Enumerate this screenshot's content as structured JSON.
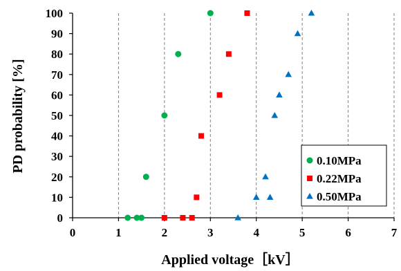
{
  "chart_data": {
    "type": "scatter",
    "xlabel": "Applied voltage［kV］",
    "ylabel": "PD probability [%]",
    "xlim": [
      0,
      7
    ],
    "ylim": [
      0,
      100
    ],
    "xticks": [
      "0",
      "1",
      "2",
      "3",
      "4",
      "5",
      "6",
      "7"
    ],
    "yticks": [
      "0",
      "10",
      "20",
      "30",
      "40",
      "50",
      "60",
      "70",
      "80",
      "90",
      "100"
    ],
    "grid": "vertical dashed",
    "legend_position": "bottom-right",
    "series": [
      {
        "name": "0.10MPa",
        "marker": "circle",
        "color": "#00b050",
        "points": [
          [
            1.2,
            0
          ],
          [
            1.4,
            0
          ],
          [
            1.5,
            0
          ],
          [
            1.6,
            20
          ],
          [
            2.0,
            50
          ],
          [
            2.3,
            80
          ],
          [
            3.0,
            100
          ]
        ]
      },
      {
        "name": "0.22MPa",
        "marker": "square",
        "color": "#ff0000",
        "points": [
          [
            2.0,
            0
          ],
          [
            2.4,
            0
          ],
          [
            2.6,
            0
          ],
          [
            2.7,
            10
          ],
          [
            2.8,
            40
          ],
          [
            3.2,
            60
          ],
          [
            3.4,
            80
          ],
          [
            3.8,
            100
          ]
        ]
      },
      {
        "name": "0.50MPa",
        "marker": "triangle",
        "color": "#0070c0",
        "points": [
          [
            3.6,
            0
          ],
          [
            4.0,
            10
          ],
          [
            4.3,
            10
          ],
          [
            4.2,
            20
          ],
          [
            4.4,
            50
          ],
          [
            4.5,
            60
          ],
          [
            4.7,
            70
          ],
          [
            4.9,
            90
          ],
          [
            5.2,
            100
          ]
        ]
      }
    ]
  }
}
